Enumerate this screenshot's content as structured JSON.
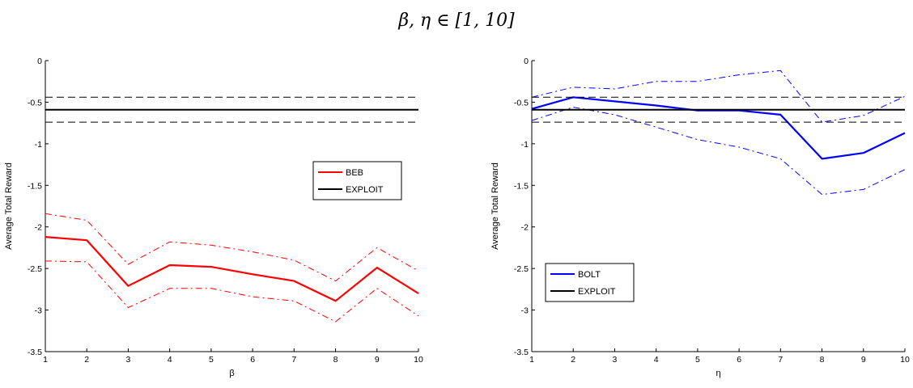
{
  "figure": {
    "title": "β, η ∈ [1, 10]"
  },
  "chart_data": [
    {
      "type": "line",
      "xlabel": "β",
      "ylabel": "Average Total Reward",
      "xlim": [
        1,
        10
      ],
      "ylim": [
        -3.5,
        0
      ],
      "xticks": [
        "1",
        "2",
        "3",
        "4",
        "5",
        "6",
        "7",
        "8",
        "9",
        "10"
      ],
      "yticks": [
        "0",
        "-0.5",
        "-1",
        "-1.5",
        "-2",
        "-2.5",
        "-3",
        "-3.5"
      ],
      "grid": false,
      "legend_position": "right",
      "x": [
        1,
        2,
        3,
        4,
        5,
        6,
        7,
        8,
        9,
        10
      ],
      "series": [
        {
          "name": "BEB",
          "color": "#ff0000",
          "values": [
            -2.12,
            -2.16,
            -2.71,
            -2.46,
            -2.48,
            -2.57,
            -2.65,
            -2.89,
            -2.49,
            -2.8
          ]
        },
        {
          "name": "",
          "color": "#ff0000",
          "style": "dash-dot",
          "values": [
            -1.84,
            -1.92,
            -2.45,
            -2.18,
            -2.22,
            -2.3,
            -2.4,
            -2.65,
            -2.25,
            -2.53
          ]
        },
        {
          "name": "",
          "color": "#ff0000",
          "style": "dash-dot",
          "values": [
            -2.41,
            -2.42,
            -2.97,
            -2.74,
            -2.74,
            -2.84,
            -2.89,
            -3.14,
            -2.74,
            -3.07
          ]
        },
        {
          "name": "EXPLOIT",
          "color": "#000000",
          "values": [
            -0.59,
            -0.59,
            -0.59,
            -0.59,
            -0.59,
            -0.59,
            -0.59,
            -0.59,
            -0.59,
            -0.59
          ]
        },
        {
          "name": "",
          "color": "#000000",
          "style": "dashed",
          "values": [
            -0.44,
            -0.44,
            -0.44,
            -0.44,
            -0.44,
            -0.44,
            -0.44,
            -0.44,
            -0.44,
            -0.44
          ]
        },
        {
          "name": "",
          "color": "#000000",
          "style": "dashed",
          "values": [
            -0.74,
            -0.74,
            -0.74,
            -0.74,
            -0.74,
            -0.74,
            -0.74,
            -0.74,
            -0.74,
            -0.74
          ]
        }
      ]
    },
    {
      "type": "line",
      "xlabel": "η",
      "ylabel": "Average Total Reward",
      "xlim": [
        1,
        10
      ],
      "ylim": [
        -3.5,
        0
      ],
      "xticks": [
        "1",
        "2",
        "3",
        "4",
        "5",
        "6",
        "7",
        "8",
        "9",
        "10"
      ],
      "yticks": [
        "0",
        "-0.5",
        "-1",
        "-1.5",
        "-2",
        "-2.5",
        "-3",
        "-3.5"
      ],
      "grid": false,
      "legend_position": "bottom-left",
      "x": [
        1,
        2,
        3,
        4,
        5,
        6,
        7,
        8,
        9,
        10
      ],
      "series": [
        {
          "name": "BOLT",
          "color": "#0000ff",
          "values": [
            -0.58,
            -0.44,
            -0.49,
            -0.54,
            -0.6,
            -0.6,
            -0.65,
            -1.18,
            -1.11,
            -0.87
          ]
        },
        {
          "name": "",
          "color": "#0000ff",
          "style": "dash-dot",
          "values": [
            -0.44,
            -0.32,
            -0.34,
            -0.25,
            -0.25,
            -0.17,
            -0.12,
            -0.74,
            -0.66,
            -0.43
          ]
        },
        {
          "name": "",
          "color": "#0000ff",
          "style": "dash-dot",
          "values": [
            -0.72,
            -0.56,
            -0.65,
            -0.8,
            -0.95,
            -1.04,
            -1.18,
            -1.61,
            -1.55,
            -1.31
          ]
        },
        {
          "name": "EXPLOIT",
          "color": "#000000",
          "values": [
            -0.59,
            -0.59,
            -0.59,
            -0.59,
            -0.59,
            -0.59,
            -0.59,
            -0.59,
            -0.59,
            -0.59
          ]
        },
        {
          "name": "",
          "color": "#000000",
          "style": "dashed",
          "values": [
            -0.44,
            -0.44,
            -0.44,
            -0.44,
            -0.44,
            -0.44,
            -0.44,
            -0.44,
            -0.44,
            -0.44
          ]
        },
        {
          "name": "",
          "color": "#000000",
          "style": "dashed",
          "values": [
            -0.74,
            -0.74,
            -0.74,
            -0.74,
            -0.74,
            -0.74,
            -0.74,
            -0.74,
            -0.74,
            -0.74
          ]
        }
      ]
    }
  ]
}
